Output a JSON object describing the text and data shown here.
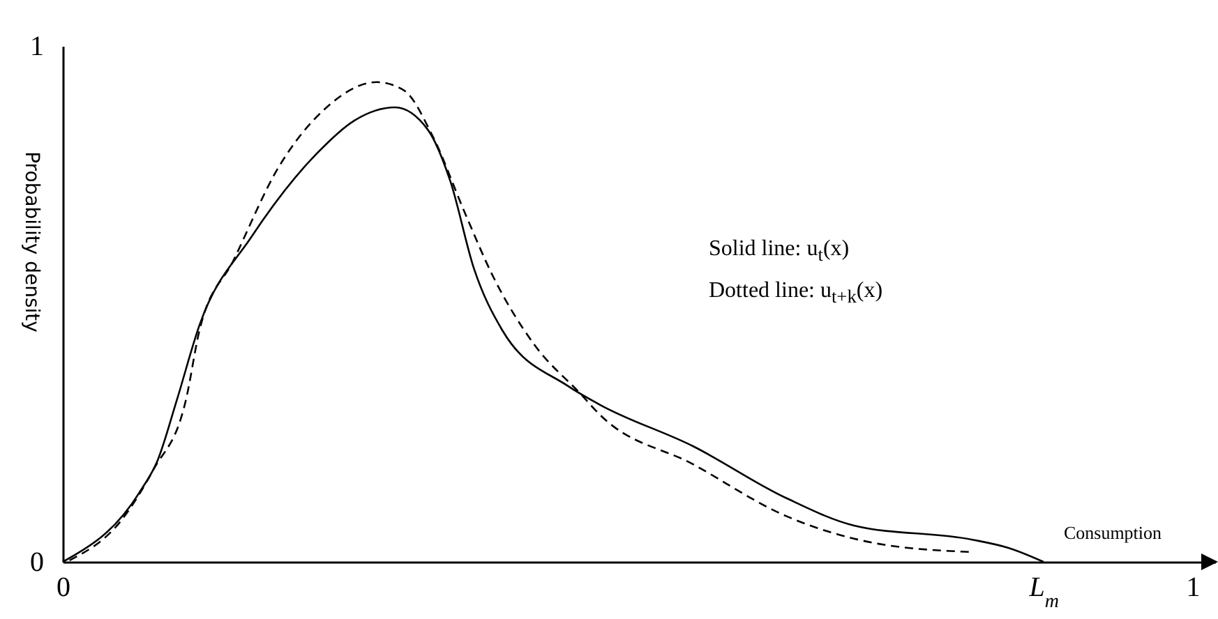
{
  "chart_data": {
    "type": "line",
    "xlabel": "Consumption",
    "ylabel": "Probability density",
    "annotations": [
      "Solid line: u$_{t}$(x)",
      "Dotted line: u$_{t+k}$(x)"
    ],
    "xlim": [
      0,
      1.02
    ],
    "xticks": [
      0,
      {
        "value": 0.868,
        "label": "L$_{m}$"
      },
      1
    ],
    "ylim": [
      0,
      1
    ],
    "yticks": [
      0,
      1
    ],
    "grid": false,
    "series": [
      {
        "color": "#000000",
        "line_style": "solid",
        "x": [
          0,
          0.068,
          0.084,
          0.101,
          0.121,
          0.167,
          0.225,
          0.257,
          0.294,
          0.323,
          0.343,
          0.364,
          0.389,
          0.447,
          0.475,
          0.558,
          0.64,
          0.701,
          0.805,
          0.837,
          0.868
        ],
        "values": [
          0,
          0.135,
          0.197,
          0.314,
          0.459,
          0.63,
          0.792,
          0.854,
          0.881,
          0.838,
          0.738,
          0.568,
          0.449,
          0.341,
          0.305,
          0.224,
          0.124,
          0.07,
          0.043,
          0.027,
          0
        ]
      },
      {
        "color": "#000000",
        "line_style": "dashed",
        "x": [
          0.006,
          0.052,
          0.08,
          0.109,
          0.121,
          0.151,
          0.191,
          0.232,
          0.278,
          0.302,
          0.327,
          0.356,
          0.38,
          0.417,
          0.459,
          0.475,
          0.558,
          0.64,
          0.722,
          0.805
        ],
        "values": [
          0.003,
          0.081,
          0.178,
          0.314,
          0.449,
          0.584,
          0.765,
          0.878,
          0.93,
          0.914,
          0.827,
          0.676,
          0.557,
          0.422,
          0.324,
          0.286,
          0.189,
          0.089,
          0.035,
          0.019
        ]
      }
    ]
  }
}
